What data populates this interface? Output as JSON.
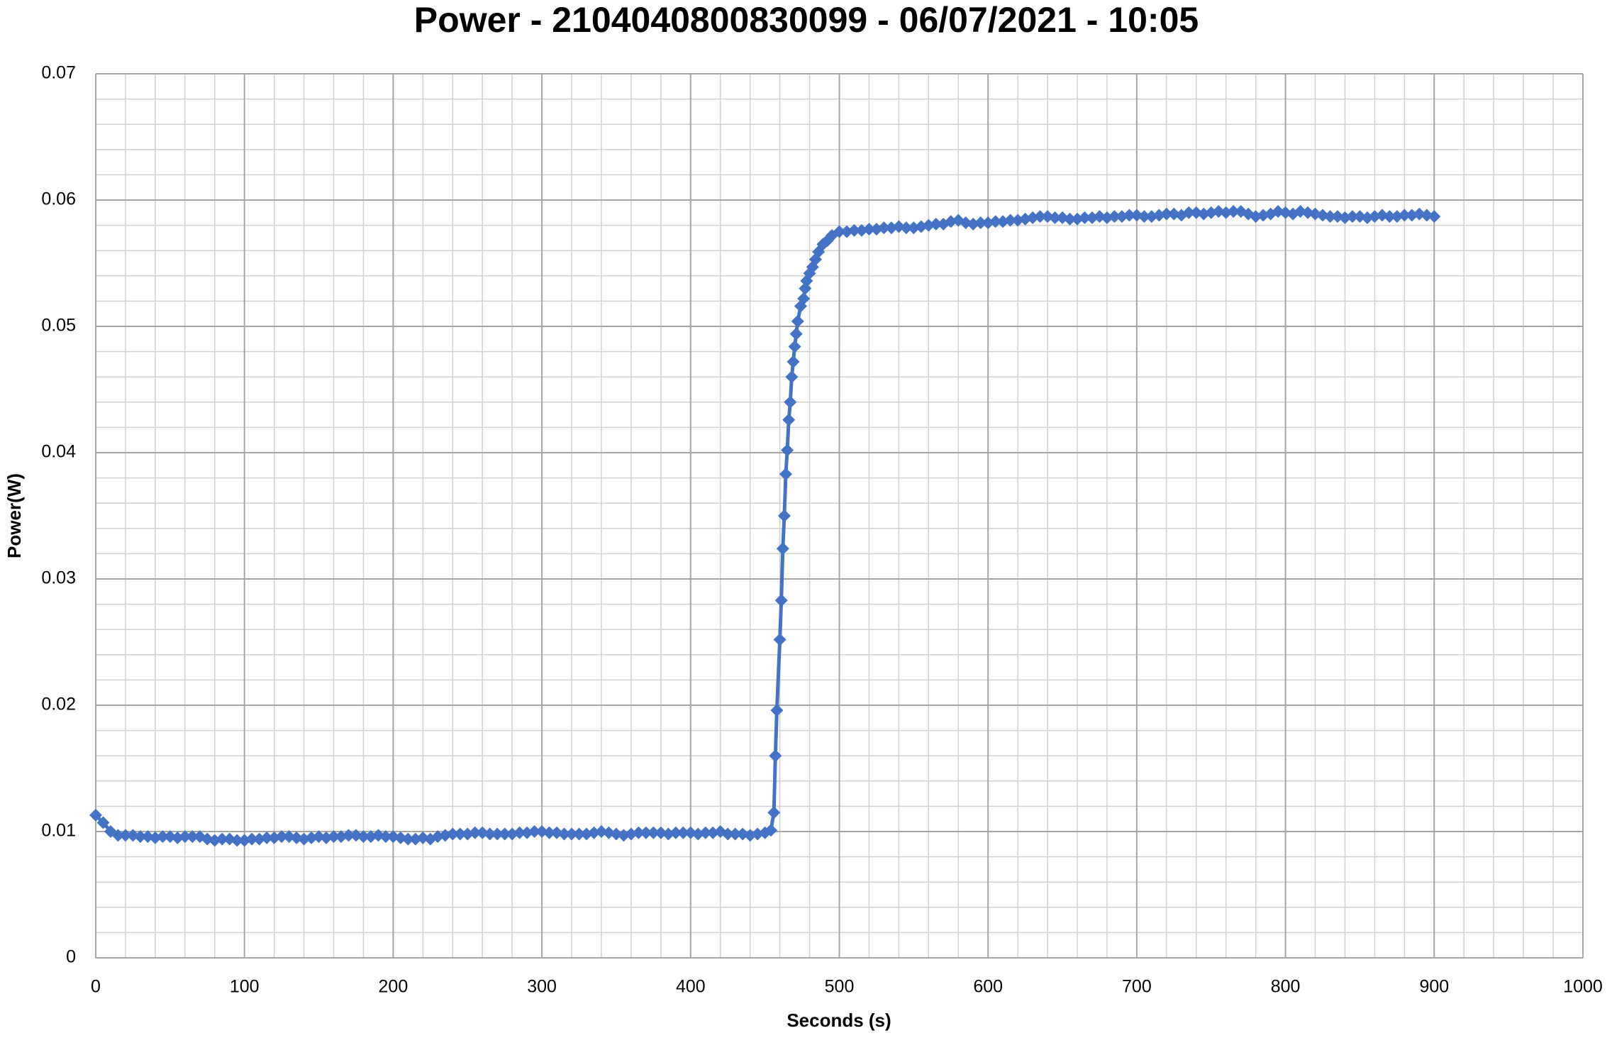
{
  "chart_data": {
    "type": "line",
    "title": "Power - 2104040800830099 - 06/07/2021 - 10:05",
    "x_label": "Seconds (s)",
    "y_label": "Power(W)",
    "xlim": [
      0,
      1000
    ],
    "xticks": [
      0,
      100,
      200,
      300,
      400,
      500,
      600,
      700,
      800,
      900,
      1000
    ],
    "ylim": [
      0,
      0.07
    ],
    "yticks": [
      0,
      0.01,
      0.02,
      0.03,
      0.04,
      0.05,
      0.06,
      0.07
    ],
    "grid": true,
    "minor_grid": true,
    "marker": "diamond",
    "x": [
      0,
      5,
      10,
      15,
      20,
      25,
      30,
      35,
      40,
      45,
      50,
      55,
      60,
      65,
      70,
      75,
      80,
      85,
      90,
      95,
      100,
      105,
      110,
      115,
      120,
      125,
      130,
      135,
      140,
      145,
      150,
      155,
      160,
      165,
      170,
      175,
      180,
      185,
      190,
      195,
      200,
      205,
      210,
      215,
      220,
      225,
      230,
      235,
      240,
      245,
      250,
      255,
      260,
      265,
      270,
      275,
      280,
      285,
      290,
      295,
      300,
      305,
      310,
      315,
      320,
      325,
      330,
      335,
      340,
      345,
      350,
      355,
      360,
      365,
      370,
      375,
      380,
      385,
      390,
      395,
      400,
      405,
      410,
      415,
      420,
      425,
      430,
      435,
      440,
      445,
      450,
      454,
      456,
      457,
      458,
      460,
      461,
      462,
      463,
      464,
      465,
      466,
      467,
      468,
      469,
      470,
      471,
      472,
      474,
      476,
      477,
      478,
      480,
      482,
      484,
      486,
      489,
      492,
      495,
      500,
      505,
      510,
      515,
      520,
      525,
      530,
      535,
      540,
      545,
      550,
      555,
      560,
      565,
      570,
      575,
      580,
      585,
      590,
      595,
      600,
      605,
      610,
      615,
      620,
      625,
      630,
      635,
      640,
      645,
      650,
      655,
      660,
      665,
      670,
      675,
      680,
      685,
      690,
      695,
      700,
      705,
      710,
      715,
      720,
      725,
      730,
      735,
      740,
      745,
      750,
      755,
      760,
      765,
      770,
      775,
      780,
      785,
      790,
      795,
      800,
      805,
      810,
      815,
      820,
      825,
      830,
      835,
      840,
      845,
      850,
      855,
      860,
      865,
      870,
      875,
      880,
      885,
      890,
      895,
      900
    ],
    "series": [
      {
        "color": "#4472c4",
        "values": [
          0.0113,
          0.0107,
          0.01,
          0.0097,
          0.0097,
          0.0097,
          0.0096,
          0.0096,
          0.0095,
          0.0096,
          0.0096,
          0.0095,
          0.0096,
          0.0096,
          0.0096,
          0.0094,
          0.0093,
          0.0094,
          0.0094,
          0.0093,
          0.0093,
          0.0094,
          0.0094,
          0.0095,
          0.0095,
          0.0096,
          0.0096,
          0.0095,
          0.0094,
          0.0095,
          0.0096,
          0.0095,
          0.0096,
          0.0096,
          0.0097,
          0.0097,
          0.0096,
          0.0096,
          0.0097,
          0.0096,
          0.0096,
          0.0095,
          0.0094,
          0.0094,
          0.0095,
          0.0094,
          0.0096,
          0.0097,
          0.0098,
          0.0098,
          0.0098,
          0.0099,
          0.0099,
          0.0098,
          0.0098,
          0.0098,
          0.0098,
          0.0099,
          0.0099,
          0.01,
          0.01,
          0.0099,
          0.0099,
          0.0098,
          0.0098,
          0.0098,
          0.0098,
          0.0099,
          0.01,
          0.0099,
          0.0098,
          0.0097,
          0.0098,
          0.0099,
          0.0099,
          0.0099,
          0.0099,
          0.0098,
          0.0099,
          0.0099,
          0.0099,
          0.0098,
          0.0099,
          0.0099,
          0.01,
          0.0098,
          0.0098,
          0.0098,
          0.0097,
          0.0098,
          0.0099,
          0.0101,
          0.0115,
          0.016,
          0.0196,
          0.0252,
          0.0283,
          0.0324,
          0.035,
          0.0383,
          0.0402,
          0.0426,
          0.044,
          0.046,
          0.0472,
          0.0484,
          0.0494,
          0.0504,
          0.0516,
          0.0522,
          0.053,
          0.0536,
          0.0542,
          0.0547,
          0.0553,
          0.0559,
          0.0565,
          0.0568,
          0.0572,
          0.0575,
          0.0575,
          0.0576,
          0.0576,
          0.0577,
          0.0577,
          0.0578,
          0.0578,
          0.0579,
          0.0578,
          0.0578,
          0.0579,
          0.058,
          0.0581,
          0.0581,
          0.0583,
          0.0584,
          0.0582,
          0.0581,
          0.0582,
          0.0582,
          0.0583,
          0.0583,
          0.0584,
          0.0584,
          0.0585,
          0.0586,
          0.0587,
          0.0587,
          0.0586,
          0.0586,
          0.0585,
          0.0585,
          0.0586,
          0.0586,
          0.0587,
          0.0586,
          0.0587,
          0.0587,
          0.0588,
          0.0588,
          0.0587,
          0.0587,
          0.0588,
          0.0589,
          0.0589,
          0.0588,
          0.059,
          0.059,
          0.0589,
          0.059,
          0.0591,
          0.059,
          0.0591,
          0.0591,
          0.0589,
          0.0587,
          0.0588,
          0.0589,
          0.0591,
          0.059,
          0.0589,
          0.0591,
          0.059,
          0.0589,
          0.0588,
          0.0587,
          0.0587,
          0.0586,
          0.0587,
          0.0587,
          0.0586,
          0.0587,
          0.0588,
          0.0587,
          0.0587,
          0.0588,
          0.0588,
          0.0589,
          0.0588,
          0.0587
        ]
      }
    ]
  }
}
